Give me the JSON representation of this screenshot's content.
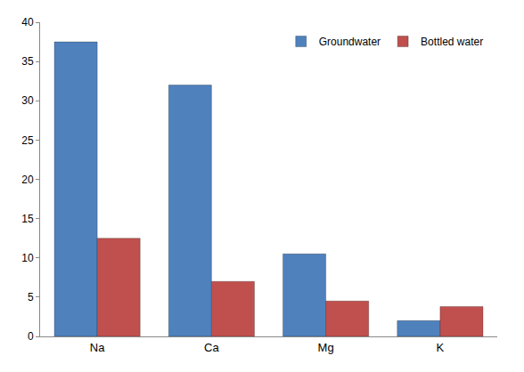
{
  "chart_data": {
    "type": "bar",
    "categories": [
      "Na",
      "Ca",
      "Mg",
      "K"
    ],
    "series": [
      {
        "name": "Groundwater",
        "color": "#4f81bd",
        "values": [
          37.5,
          32,
          10.5,
          2
        ]
      },
      {
        "name": "Bottled water",
        "color": "#c0504d",
        "values": [
          12.5,
          7,
          4.5,
          3.8
        ]
      }
    ],
    "ylim": [
      0,
      40
    ],
    "yticks": [
      0,
      5,
      10,
      15,
      20,
      25,
      30,
      35,
      40
    ],
    "grid": false,
    "legend": "top-right"
  }
}
